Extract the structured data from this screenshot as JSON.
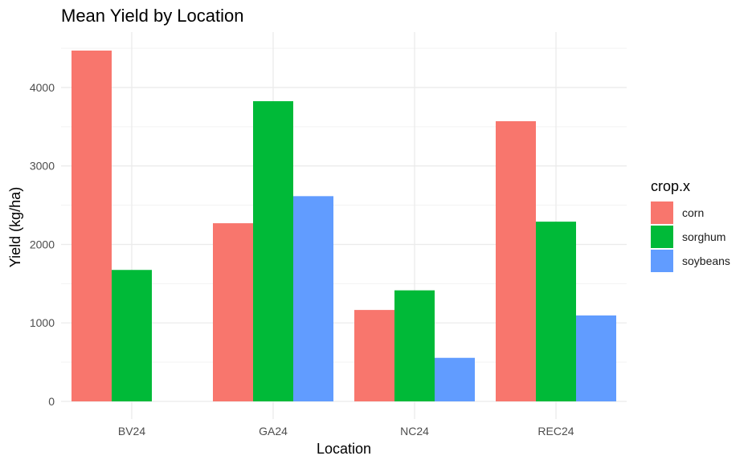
{
  "chart_data": {
    "type": "bar",
    "title": "Mean Yield by Location",
    "xlabel": "Location",
    "ylabel": "Yield (kg/ha)",
    "categories": [
      "BV24",
      "GA24",
      "NC24",
      "REC24"
    ],
    "ylim": [
      0,
      4650
    ],
    "yticks": [
      0,
      1000,
      2000,
      3000,
      4000
    ],
    "yticks_labels": [
      "0",
      "1000",
      "2000",
      "3000",
      "4000"
    ],
    "grid": true,
    "legend": {
      "title": "crop.x",
      "position": "right"
    },
    "series": [
      {
        "name": "corn",
        "color": "#F8766D",
        "values": [
          4470,
          2270,
          1165,
          3570
        ]
      },
      {
        "name": "sorghum",
        "color": "#00BA38",
        "values": [
          1675,
          3825,
          1415,
          2290
        ]
      },
      {
        "name": "soybeans",
        "color": "#619CFF",
        "values": [
          null,
          2615,
          555,
          1095
        ]
      }
    ]
  }
}
